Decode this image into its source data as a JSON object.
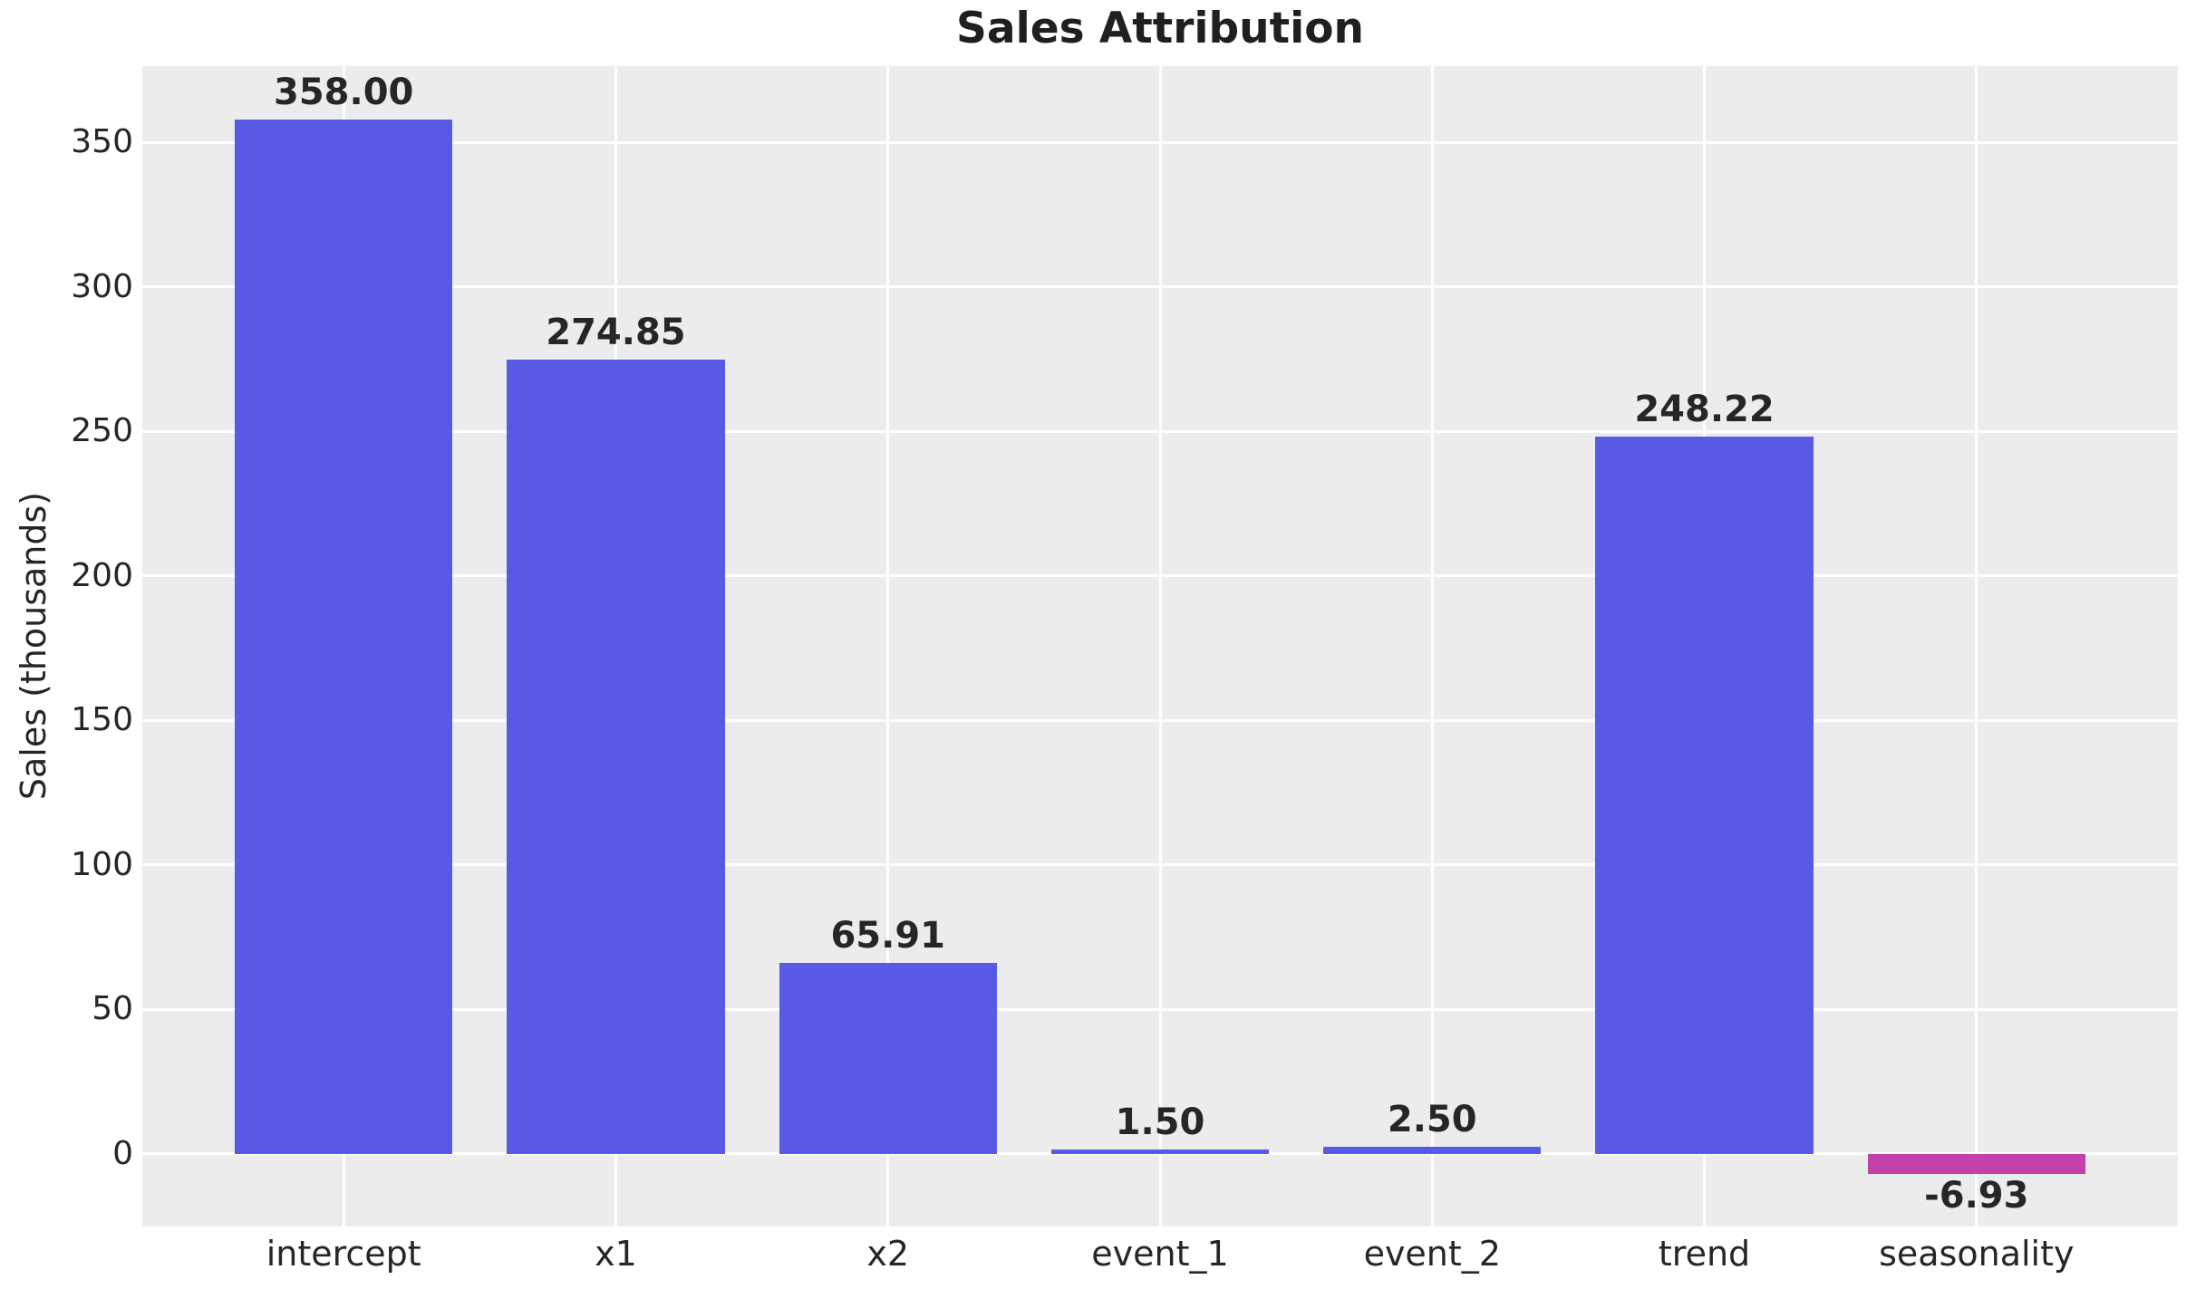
{
  "figure": {
    "title": "Sales Attribution",
    "y_axis_label": "Sales (thousands)"
  },
  "chart_data": {
    "type": "bar",
    "title": "Sales Attribution",
    "xlabel": "",
    "ylabel": "Sales (thousands)",
    "categories": [
      "intercept",
      "x1",
      "x2",
      "event_1",
      "event_2",
      "trend",
      "seasonality"
    ],
    "values": [
      358.0,
      274.85,
      65.91,
      1.5,
      2.5,
      248.22,
      -6.93
    ],
    "value_labels": [
      "358.00",
      "274.85",
      "65.91",
      "1.50",
      "2.50",
      "248.22",
      "-6.93"
    ],
    "yticks": [
      0,
      50,
      100,
      150,
      200,
      250,
      300,
      350
    ],
    "ytick_labels": [
      "0",
      "50",
      "100",
      "150",
      "200",
      "250",
      "300",
      "350"
    ],
    "ylim": [
      -25.2,
      376.4
    ],
    "xlim": [
      -0.74,
      6.74
    ],
    "bar_width_fraction": 0.8,
    "grid": true,
    "legend": false,
    "colors": {
      "positive_bar": "#5153e4",
      "negative_bar": "#c13aa6",
      "plot_background": "#ececec",
      "figure_background": "#ffffff",
      "gridline": "#ffffff",
      "text": "#262626",
      "title_text": "#1f1f1f"
    }
  }
}
